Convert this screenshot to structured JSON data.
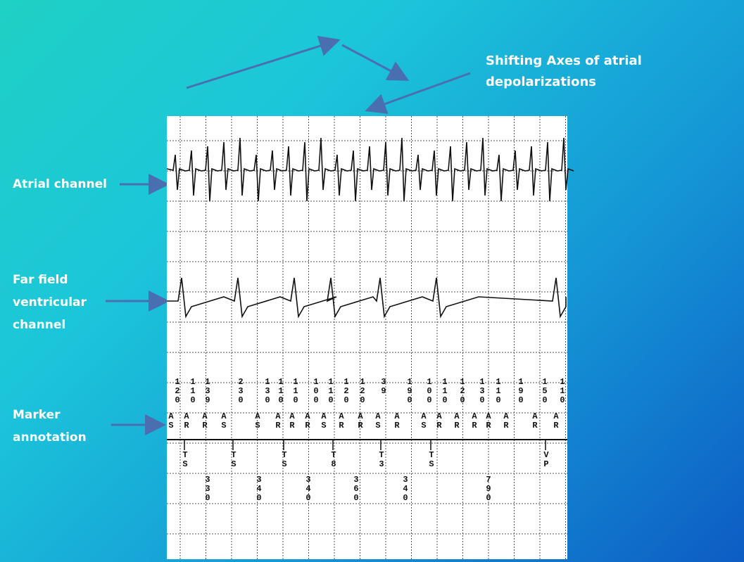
{
  "title": [
    "Shifting Axes of atrial",
    "depolarizations"
  ],
  "labels": {
    "atrial": [
      "Atrial channel"
    ],
    "ventricular": [
      "Far field",
      "ventricular",
      "channel"
    ],
    "marker": [
      "Marker",
      "annotation"
    ]
  },
  "strip": {
    "intervals": [
      "120",
      "110",
      "139",
      "230",
      "130",
      "110",
      "110",
      "100",
      "110",
      "120",
      "120",
      "39",
      "190",
      "100",
      "110",
      "120",
      "130",
      "110",
      "190",
      "150",
      "110"
    ],
    "markers": [
      "AS",
      "AR",
      "AR",
      "AS",
      "AS",
      "AR",
      "AR",
      "AR",
      "AS",
      "AR",
      "AR",
      "AS",
      "AR",
      "AS",
      "AR",
      "AR",
      "AR",
      "AR",
      "AR",
      "AR",
      "AR"
    ],
    "sense_markers": [
      "TS",
      "TS",
      "TS",
      "T8",
      "T3",
      "TS",
      "VP"
    ],
    "cycle_lengths": [
      "330",
      "340",
      "340",
      "360",
      "340",
      "790"
    ]
  }
}
